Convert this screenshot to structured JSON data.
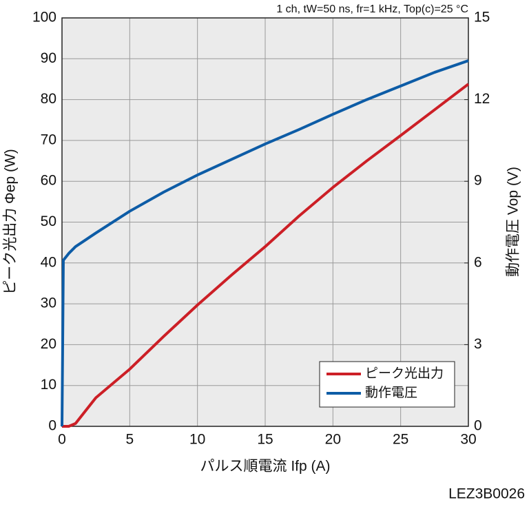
{
  "chart_data": {
    "type": "line",
    "annotation": "1 ch, tW=50 ns, fr=1 kHz, Top(c)=25 °C",
    "x_label": "パルス順電流 Ifp (A)",
    "y_label": "ピーク光出力 Φep (W)",
    "y2_label": "動作電圧 Vop (V)",
    "footer": "LEZ3B0026",
    "x": [
      0,
      0.05,
      0.1,
      0.5,
      1,
      2.5,
      5,
      7.5,
      10,
      12.5,
      15,
      17.5,
      20,
      22.5,
      25,
      27.5,
      30
    ],
    "series": [
      {
        "name": "ピーク光出力",
        "color": "#cc1f26",
        "values": [
          0,
          0,
          0,
          0,
          0.7,
          7,
          14,
          22,
          29.7,
          37,
          44,
          51.5,
          58.5,
          65,
          71.2,
          77.5,
          83.8
        ]
      },
      {
        "name": "動作電圧",
        "color": "#0d5ca6",
        "axis": "y2",
        "values": [
          0,
          3,
          6.1,
          6.35,
          6.6,
          7.1,
          7.9,
          8.6,
          9.23,
          9.8,
          10.37,
          10.9,
          11.46,
          12.0,
          12.5,
          13.0,
          13.43
        ]
      }
    ],
    "xlim": [
      0,
      30
    ],
    "xticks": [
      0,
      5,
      10,
      15,
      20,
      25,
      30
    ],
    "ylim": [
      0,
      100
    ],
    "yticks": [
      0,
      10,
      20,
      30,
      40,
      50,
      60,
      70,
      80,
      90,
      100
    ],
    "y2lim": [
      0,
      15
    ],
    "y2ticks": [
      0,
      3,
      6,
      9,
      12,
      15
    ],
    "grid": true,
    "legend": "lower right"
  }
}
